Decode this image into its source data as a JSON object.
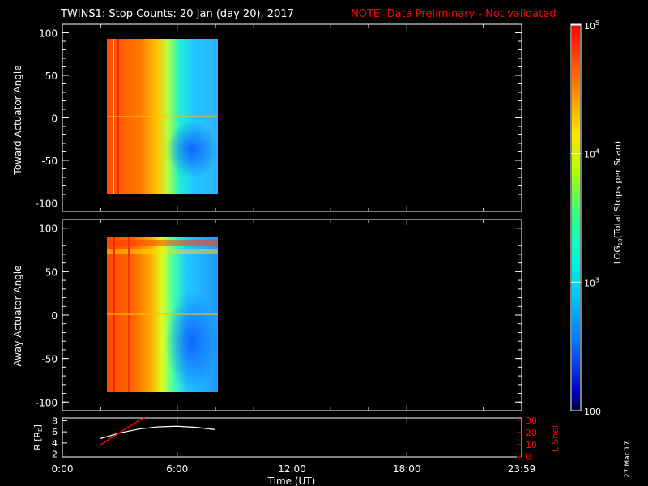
{
  "title": "TWINS1: Stop Counts: 20 Jan (day  20), 2017",
  "note": "NOTE: Data Preliminary - Not validated",
  "date_stamp": "27 Mar 17",
  "colors": {
    "background": "#000000",
    "note": "#ff0000",
    "lshell": "#ff0000",
    "radius": "#ffffff"
  },
  "chart_data": [
    {
      "type": "heatmap",
      "ylabel": "Toward Actuator Angle",
      "x_range_hours": [
        0,
        24
      ],
      "ylim": [
        -110,
        110
      ],
      "yticks": [
        "100",
        "50",
        "0",
        "-50",
        "-100"
      ],
      "data_extent": {
        "x_hours": [
          2.0,
          8.0
        ],
        "angle": [
          -90,
          90
        ]
      },
      "color_scale": {
        "min": 100,
        "max": 100000,
        "log": true
      }
    },
    {
      "type": "heatmap",
      "ylabel": "Away Actuator Angle",
      "x_range_hours": [
        0,
        24
      ],
      "ylim": [
        -110,
        110
      ],
      "yticks": [
        "100",
        "50",
        "0",
        "-50",
        "-100"
      ],
      "data_extent": {
        "x_hours": [
          2.0,
          8.0
        ],
        "angle": [
          -90,
          90
        ]
      },
      "color_scale": {
        "min": 100,
        "max": 100000,
        "log": true
      }
    },
    {
      "type": "line",
      "xlabel": "Time (UT)",
      "xticks": [
        "0:00",
        "6:00",
        "12:00",
        "18:00",
        "23:59"
      ],
      "ylabel_left": "R [R",
      "ylabel_left_sub": "E",
      "ylabel_left_end": "]",
      "yticks_left": [
        "8",
        "6",
        "4",
        "2"
      ],
      "ylim_left": [
        1.5,
        8.5
      ],
      "ylabel_right": "L Shell",
      "yticks_right": [
        "30",
        "20",
        "10",
        "0"
      ],
      "ylim_right": [
        0,
        32
      ],
      "series": [
        {
          "axis": "left",
          "x": [
            2.0,
            3.0,
            4.0,
            5.0,
            6.0,
            7.0,
            8.0
          ],
          "y": [
            4.8,
            5.8,
            6.5,
            6.9,
            7.0,
            6.8,
            6.4
          ]
        },
        {
          "axis": "right",
          "x": [
            2.0,
            3.0,
            4.0,
            4.3
          ],
          "y": [
            10,
            20,
            30,
            32
          ]
        }
      ]
    }
  ],
  "colorbar": {
    "label_prefix": "LOG",
    "label_sub": "10",
    "label_suffix": "(Total Stops per Scan)",
    "ticks": [
      {
        "base": "10",
        "exp": "5"
      },
      {
        "base": "10",
        "exp": "4"
      },
      {
        "base": "10",
        "exp": "3"
      },
      {
        "base": "100",
        "exp": ""
      }
    ]
  }
}
